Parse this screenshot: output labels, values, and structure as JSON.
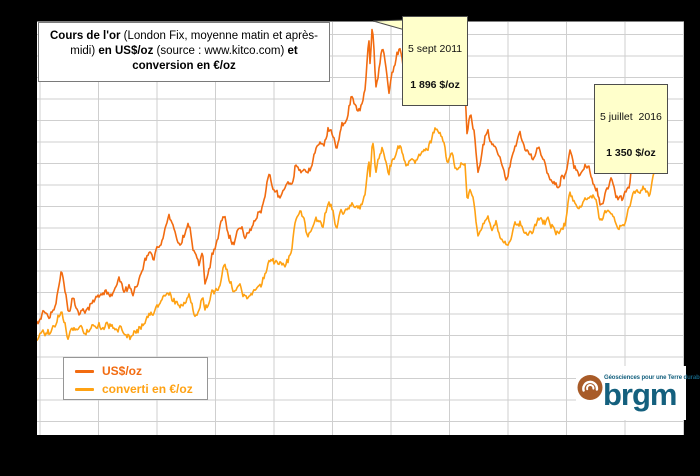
{
  "title": {
    "parts": [
      {
        "text": "Cours de l'or",
        "bold": true
      },
      {
        "text": " (London Fix, moyenne matin et après-midi) ",
        "bold": false
      },
      {
        "text": "en US$/oz",
        "bold": true
      },
      {
        "text": " (source : www.kitco.com) ",
        "bold": false
      },
      {
        "text": "et conversion en €/oz",
        "bold": true
      }
    ]
  },
  "legend": {
    "items": [
      {
        "label": "US$/oz",
        "color": "#F26B10"
      },
      {
        "label": "converti en €/oz",
        "color": "#FFA213"
      }
    ]
  },
  "logo": {
    "wordmark": "brgm",
    "tagline": "Géosciences pour une Terre durable",
    "teal": "#14607E",
    "brown": "#A85B28"
  },
  "colors": {
    "plot_background": "#ffffff",
    "page_background": "#000000",
    "gridline": "#cfcfcf",
    "plot_top_border": "#7f7f7f",
    "callout_background": "#FFFFCB",
    "callout_border": "#4d4d4d"
  },
  "chart_data": {
    "type": "line",
    "title": "Cours de l'or (London Fix, moyenne matin et après-midi) en US$/oz (source : www.kitco.com) et conversion en €/oz",
    "x_axis": {
      "start_year": 2006,
      "end_year": 2017,
      "gridline_interval_years": 1,
      "tick_labels_visible": false
    },
    "y_axis": {
      "min": 0,
      "max": 1990,
      "gridline_step": 100,
      "unit": "$/oz or €/oz",
      "tick_labels_visible": false
    },
    "grid": true,
    "legend_position": "bottom-left",
    "annotations": [
      {
        "date": "5 sept 2011",
        "value_label": "1 896 $/oz",
        "x": 2011.68,
        "value": 1896
      },
      {
        "date": "5 juillet  2016",
        "value_label": "1 350 $/oz",
        "x": 2016.513,
        "value": 1350
      }
    ],
    "series": [
      {
        "name": "US$/oz",
        "color": "#F26B10",
        "points": [
          [
            2005.93,
            510
          ],
          [
            2006.05,
            550
          ],
          [
            2006.15,
            555
          ],
          [
            2006.25,
            585
          ],
          [
            2006.37,
            720
          ],
          [
            2006.45,
            630
          ],
          [
            2006.49,
            580
          ],
          [
            2006.55,
            635
          ],
          [
            2006.63,
            600
          ],
          [
            2006.75,
            585
          ],
          [
            2006.9,
            630
          ],
          [
            2007.0,
            640
          ],
          [
            2007.1,
            655
          ],
          [
            2007.2,
            650
          ],
          [
            2007.35,
            680
          ],
          [
            2007.45,
            655
          ],
          [
            2007.6,
            665
          ],
          [
            2007.7,
            700
          ],
          [
            2007.8,
            780
          ],
          [
            2007.87,
            835
          ],
          [
            2007.93,
            790
          ],
          [
            2008.0,
            860
          ],
          [
            2008.1,
            925
          ],
          [
            2008.21,
            1005
          ],
          [
            2008.3,
            915
          ],
          [
            2008.4,
            880
          ],
          [
            2008.54,
            975
          ],
          [
            2008.65,
            830
          ],
          [
            2008.72,
            790
          ],
          [
            2008.78,
            870
          ],
          [
            2008.82,
            715
          ],
          [
            2008.88,
            745
          ],
          [
            2008.95,
            820
          ],
          [
            2009.05,
            890
          ],
          [
            2009.14,
            985
          ],
          [
            2009.22,
            930
          ],
          [
            2009.3,
            880
          ],
          [
            2009.42,
            955
          ],
          [
            2009.5,
            930
          ],
          [
            2009.6,
            945
          ],
          [
            2009.7,
            995
          ],
          [
            2009.8,
            1045
          ],
          [
            2009.92,
            1205
          ],
          [
            2010.0,
            1120
          ],
          [
            2010.1,
            1075
          ],
          [
            2010.2,
            1115
          ],
          [
            2010.3,
            1135
          ],
          [
            2010.37,
            1235
          ],
          [
            2010.45,
            1230
          ],
          [
            2010.52,
            1200
          ],
          [
            2010.58,
            1165
          ],
          [
            2010.68,
            1245
          ],
          [
            2010.78,
            1345
          ],
          [
            2010.85,
            1330
          ],
          [
            2010.93,
            1420
          ],
          [
            2011.0,
            1385
          ],
          [
            2011.07,
            1320
          ],
          [
            2011.15,
            1415
          ],
          [
            2011.25,
            1440
          ],
          [
            2011.33,
            1545
          ],
          [
            2011.42,
            1500
          ],
          [
            2011.5,
            1510
          ],
          [
            2011.56,
            1610
          ],
          [
            2011.62,
            1860
          ],
          [
            2011.645,
            1720
          ],
          [
            2011.68,
            1896
          ],
          [
            2011.71,
            1780
          ],
          [
            2011.74,
            1615
          ],
          [
            2011.79,
            1690
          ],
          [
            2011.85,
            1780
          ],
          [
            2011.9,
            1700
          ],
          [
            2011.96,
            1560
          ],
          [
            2012.03,
            1660
          ],
          [
            2012.1,
            1730
          ],
          [
            2012.16,
            1780
          ],
          [
            2012.25,
            1640
          ],
          [
            2012.33,
            1660
          ],
          [
            2012.41,
            1545
          ],
          [
            2012.48,
            1600
          ],
          [
            2012.55,
            1575
          ],
          [
            2012.62,
            1620
          ],
          [
            2012.7,
            1735
          ],
          [
            2012.76,
            1785
          ],
          [
            2012.83,
            1720
          ],
          [
            2012.9,
            1715
          ],
          [
            2012.96,
            1655
          ],
          [
            2013.03,
            1675
          ],
          [
            2013.13,
            1580
          ],
          [
            2013.2,
            1600
          ],
          [
            2013.27,
            1560
          ],
          [
            2013.3,
            1370
          ],
          [
            2013.36,
            1460
          ],
          [
            2013.42,
            1390
          ],
          [
            2013.49,
            1200
          ],
          [
            2013.55,
            1285
          ],
          [
            2013.65,
            1395
          ],
          [
            2013.72,
            1310
          ],
          [
            2013.8,
            1325
          ],
          [
            2013.88,
            1255
          ],
          [
            2013.97,
            1195
          ],
          [
            2014.05,
            1250
          ],
          [
            2014.13,
            1320
          ],
          [
            2014.2,
            1380
          ],
          [
            2014.3,
            1285
          ],
          [
            2014.42,
            1250
          ],
          [
            2014.52,
            1330
          ],
          [
            2014.6,
            1290
          ],
          [
            2014.7,
            1220
          ],
          [
            2014.8,
            1165
          ],
          [
            2014.86,
            1145
          ],
          [
            2014.92,
            1200
          ],
          [
            2014.98,
            1185
          ],
          [
            2015.06,
            1295
          ],
          [
            2015.15,
            1210
          ],
          [
            2015.22,
            1155
          ],
          [
            2015.3,
            1200
          ],
          [
            2015.38,
            1225
          ],
          [
            2015.46,
            1180
          ],
          [
            2015.52,
            1165
          ],
          [
            2015.57,
            1085
          ],
          [
            2015.63,
            1115
          ],
          [
            2015.7,
            1135
          ],
          [
            2015.78,
            1170
          ],
          [
            2015.85,
            1075
          ],
          [
            2015.9,
            1070
          ],
          [
            2015.96,
            1055
          ],
          [
            2016.02,
            1085
          ],
          [
            2016.08,
            1130
          ],
          [
            2016.13,
            1240
          ],
          [
            2016.2,
            1230
          ],
          [
            2016.28,
            1240
          ],
          [
            2016.33,
            1285
          ],
          [
            2016.42,
            1215
          ],
          [
            2016.47,
            1300
          ],
          [
            2016.513,
            1350
          ]
        ]
      },
      {
        "name": "converti en €/oz",
        "color": "#FFA213",
        "points": [
          [
            2005.93,
            432
          ],
          [
            2006.05,
            460
          ],
          [
            2006.15,
            465
          ],
          [
            2006.25,
            490
          ],
          [
            2006.37,
            565
          ],
          [
            2006.45,
            500
          ],
          [
            2006.49,
            460
          ],
          [
            2006.55,
            500
          ],
          [
            2006.63,
            475
          ],
          [
            2006.75,
            460
          ],
          [
            2006.9,
            480
          ],
          [
            2007.0,
            495
          ],
          [
            2007.1,
            500
          ],
          [
            2007.2,
            495
          ],
          [
            2007.35,
            505
          ],
          [
            2007.45,
            490
          ],
          [
            2007.6,
            490
          ],
          [
            2007.7,
            510
          ],
          [
            2007.8,
            545
          ],
          [
            2007.87,
            570
          ],
          [
            2007.93,
            545
          ],
          [
            2008.0,
            585
          ],
          [
            2008.1,
            610
          ],
          [
            2008.21,
            640
          ],
          [
            2008.3,
            585
          ],
          [
            2008.4,
            565
          ],
          [
            2008.54,
            615
          ],
          [
            2008.65,
            560
          ],
          [
            2008.72,
            555
          ],
          [
            2008.78,
            620
          ],
          [
            2008.82,
            555
          ],
          [
            2008.88,
            585
          ],
          [
            2008.95,
            640
          ],
          [
            2009.05,
            665
          ],
          [
            2009.14,
            770
          ],
          [
            2009.22,
            715
          ],
          [
            2009.3,
            665
          ],
          [
            2009.42,
            700
          ],
          [
            2009.5,
            660
          ],
          [
            2009.6,
            655
          ],
          [
            2009.7,
            680
          ],
          [
            2009.8,
            700
          ],
          [
            2009.92,
            805
          ],
          [
            2010.0,
            780
          ],
          [
            2010.1,
            785
          ],
          [
            2010.2,
            820
          ],
          [
            2010.3,
            850
          ],
          [
            2010.37,
            985
          ],
          [
            2010.45,
            1020
          ],
          [
            2010.52,
            960
          ],
          [
            2010.58,
            905
          ],
          [
            2010.68,
            960
          ],
          [
            2010.78,
            965
          ],
          [
            2010.85,
            975
          ],
          [
            2010.93,
            1070
          ],
          [
            2011.0,
            1040
          ],
          [
            2011.07,
            965
          ],
          [
            2011.15,
            1035
          ],
          [
            2011.25,
            1010
          ],
          [
            2011.33,
            1055
          ],
          [
            2011.42,
            1050
          ],
          [
            2011.5,
            1060
          ],
          [
            2011.56,
            1130
          ],
          [
            2011.62,
            1290
          ],
          [
            2011.645,
            1195
          ],
          [
            2011.68,
            1345
          ],
          [
            2011.71,
            1295
          ],
          [
            2011.74,
            1200
          ],
          [
            2011.79,
            1245
          ],
          [
            2011.85,
            1310
          ],
          [
            2011.9,
            1265
          ],
          [
            2011.96,
            1205
          ],
          [
            2012.03,
            1270
          ],
          [
            2012.1,
            1310
          ],
          [
            2012.16,
            1330
          ],
          [
            2012.25,
            1245
          ],
          [
            2012.33,
            1290
          ],
          [
            2012.41,
            1240
          ],
          [
            2012.48,
            1270
          ],
          [
            2012.55,
            1285
          ],
          [
            2012.62,
            1300
          ],
          [
            2012.7,
            1350
          ],
          [
            2012.76,
            1385
          ],
          [
            2012.83,
            1330
          ],
          [
            2012.9,
            1320
          ],
          [
            2012.96,
            1255
          ],
          [
            2013.03,
            1260
          ],
          [
            2013.13,
            1185
          ],
          [
            2013.2,
            1225
          ],
          [
            2013.27,
            1195
          ],
          [
            2013.3,
            1050
          ],
          [
            2013.36,
            1125
          ],
          [
            2013.42,
            1065
          ],
          [
            2013.49,
            925
          ],
          [
            2013.55,
            975
          ],
          [
            2013.65,
            1045
          ],
          [
            2013.72,
            990
          ],
          [
            2013.8,
            1000
          ],
          [
            2013.88,
            930
          ],
          [
            2013.97,
            870
          ],
          [
            2014.05,
            915
          ],
          [
            2014.13,
            965
          ],
          [
            2014.2,
            1000
          ],
          [
            2014.3,
            930
          ],
          [
            2014.42,
            920
          ],
          [
            2014.52,
            975
          ],
          [
            2014.6,
            965
          ],
          [
            2014.7,
            950
          ],
          [
            2014.8,
            925
          ],
          [
            2014.86,
            915
          ],
          [
            2014.92,
            965
          ],
          [
            2014.98,
            975
          ],
          [
            2015.06,
            1115
          ],
          [
            2015.15,
            1065
          ],
          [
            2015.22,
            1080
          ],
          [
            2015.3,
            1095
          ],
          [
            2015.38,
            1090
          ],
          [
            2015.46,
            1065
          ],
          [
            2015.52,
            1045
          ],
          [
            2015.57,
            985
          ],
          [
            2015.63,
            1000
          ],
          [
            2015.7,
            1010
          ],
          [
            2015.78,
            1030
          ],
          [
            2015.85,
            985
          ],
          [
            2015.9,
            975
          ],
          [
            2015.96,
            965
          ],
          [
            2016.02,
            995
          ],
          [
            2016.08,
            1020
          ],
          [
            2016.13,
            1115
          ],
          [
            2016.2,
            1105
          ],
          [
            2016.28,
            1095
          ],
          [
            2016.33,
            1125
          ],
          [
            2016.42,
            1080
          ],
          [
            2016.47,
            1175
          ],
          [
            2016.513,
            1220
          ]
        ]
      }
    ]
  }
}
